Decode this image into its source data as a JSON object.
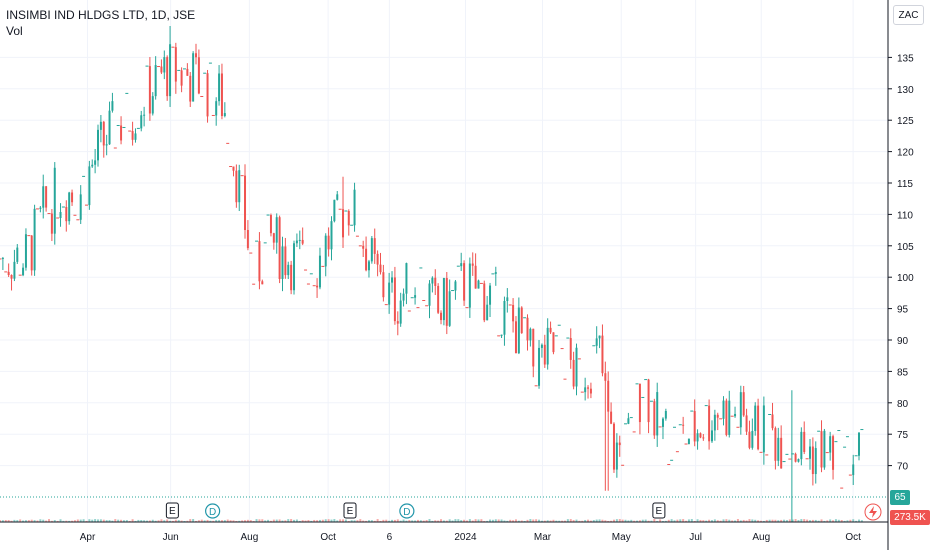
{
  "header": {
    "title": "INSIMBI IND HLDGS LTD, 1D, JSE",
    "indicator": "Vol"
  },
  "axis": {
    "currency": "ZAC",
    "last_price_label": "65",
    "last_volume_label": "273.5K"
  },
  "colors": {
    "up": "#26a69a",
    "down": "#ef5350",
    "grid": "#f0f3fa",
    "axis": "#131722"
  },
  "chart_data": {
    "type": "candlestick",
    "y_ticks": [
      70,
      75,
      80,
      85,
      90,
      95,
      100,
      105,
      110,
      115,
      120,
      125,
      130,
      135
    ],
    "ylim": [
      62.5,
      140
    ],
    "x_ticks": [
      {
        "label": "Apr",
        "t": 0.1
      },
      {
        "label": "Jun",
        "t": 0.195
      },
      {
        "label": "Aug",
        "t": 0.285
      },
      {
        "label": "Oct",
        "t": 0.375
      },
      {
        "label": "6",
        "t": 0.445
      },
      {
        "label": "2024",
        "t": 0.532
      },
      {
        "label": "Mar",
        "t": 0.62
      },
      {
        "label": "May",
        "t": 0.71
      },
      {
        "label": "Jul",
        "t": 0.795
      },
      {
        "label": "Aug",
        "t": 0.87
      },
      {
        "label": "Oct",
        "t": 0.975
      }
    ],
    "price_line": 65,
    "events": [
      {
        "type": "E",
        "t": 0.197
      },
      {
        "type": "D",
        "t": 0.243
      },
      {
        "type": "E",
        "t": 0.4
      },
      {
        "type": "D",
        "t": 0.465
      },
      {
        "type": "E",
        "t": 0.753
      }
    ],
    "series_keypoints": [
      [
        0.0,
        103
      ],
      [
        0.03,
        103
      ],
      [
        0.05,
        110
      ],
      [
        0.07,
        114
      ],
      [
        0.09,
        113
      ],
      [
        0.12,
        122
      ],
      [
        0.15,
        126
      ],
      [
        0.19,
        133
      ],
      [
        0.22,
        132
      ],
      [
        0.255,
        128
      ],
      [
        0.275,
        113
      ],
      [
        0.29,
        100
      ],
      [
        0.31,
        106
      ],
      [
        0.33,
        103
      ],
      [
        0.36,
        102
      ],
      [
        0.38,
        107
      ],
      [
        0.4,
        112
      ],
      [
        0.43,
        100
      ],
      [
        0.45,
        96
      ],
      [
        0.48,
        100
      ],
      [
        0.5,
        94
      ],
      [
        0.53,
        99
      ],
      [
        0.56,
        97
      ],
      [
        0.59,
        92
      ],
      [
        0.61,
        86
      ],
      [
        0.64,
        89
      ],
      [
        0.66,
        84
      ],
      [
        0.685,
        88
      ],
      [
        0.7,
        72
      ],
      [
        0.72,
        74
      ],
      [
        0.735,
        84
      ],
      [
        0.75,
        77
      ],
      [
        0.77,
        74
      ],
      [
        0.79,
        75
      ],
      [
        0.82,
        79
      ],
      [
        0.84,
        78
      ],
      [
        0.86,
        76
      ],
      [
        0.88,
        75
      ],
      [
        0.9,
        74
      ],
      [
        0.92,
        72
      ],
      [
        0.94,
        73
      ],
      [
        0.96,
        71
      ],
      [
        0.985,
        72
      ]
    ],
    "spikes": [
      {
        "t": 0.195,
        "high": 140
      },
      {
        "t": 0.39,
        "high": 116
      },
      {
        "t": 0.693,
        "low": 66
      },
      {
        "t": 0.735,
        "high": 95
      },
      {
        "t": 0.905,
        "low": 65,
        "high": 82
      }
    ],
    "candle_count": 300
  }
}
